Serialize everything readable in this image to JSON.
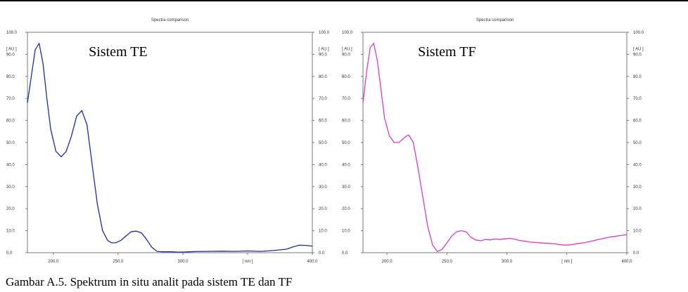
{
  "caption": "Gambar A.5. Spektrum in situ analit pada sistem TE dan TF",
  "chart_data": [
    {
      "type": "line",
      "title": "Spectra comparison",
      "annotation": "Sistem TE",
      "ylabel": "[ AU ]",
      "xlabel": "[ nm ]",
      "xlim": [
        180,
        400
      ],
      "ylim": [
        0,
        100
      ],
      "xticks": [
        "200.0",
        "250.0",
        "300.0",
        "[ nm ]",
        "400.0"
      ],
      "yticks": [
        "0.0",
        "10.0",
        "20.0",
        "30.0",
        "40.0",
        "50.0",
        "60.0",
        "70.0",
        "80.0",
        "90.0",
        "100.0"
      ],
      "color": "#1f2aa8",
      "series": [
        {
          "x": [
            180,
            183,
            186,
            189,
            192,
            195,
            198,
            202,
            206,
            210,
            214,
            218,
            222,
            226,
            230,
            234,
            238,
            242,
            245,
            248,
            252,
            256,
            260,
            264,
            268,
            272,
            276,
            280,
            284,
            288,
            292,
            296,
            300,
            305,
            310,
            320,
            330,
            340,
            350,
            360,
            370,
            380,
            385,
            390,
            395,
            400
          ],
          "y": [
            68,
            80,
            92,
            95,
            86,
            70,
            56,
            46,
            43.5,
            46,
            53,
            62,
            64.5,
            58,
            40,
            22,
            10,
            5.5,
            4.5,
            4.5,
            5.5,
            7.5,
            9.5,
            9.8,
            9,
            6,
            2.5,
            0.6,
            0.4,
            0.4,
            0.4,
            0.3,
            0.3,
            0.4,
            0.5,
            0.6,
            0.7,
            0.6,
            0.8,
            0.6,
            1.0,
            1.6,
            2.6,
            3.4,
            3.3,
            3.0
          ]
        }
      ]
    },
    {
      "type": "line",
      "title": "Spectra comparison",
      "annotation": "Sistem TF",
      "ylabel": "[ AU ]",
      "xlabel": "[ nm ]",
      "xlim": [
        180,
        400
      ],
      "ylim": [
        0,
        100
      ],
      "xticks": [
        "200.0",
        "250.0",
        "300.0",
        "[ nm ]",
        "400.0"
      ],
      "yticks": [
        "0.0",
        "10.0",
        "20.0",
        "30.0",
        "40.0",
        "50.0",
        "60.0",
        "70.0",
        "80.0",
        "90.0",
        "100.0"
      ],
      "color": "#d63ad0",
      "series": [
        {
          "x": [
            180,
            183,
            186,
            189,
            192,
            195,
            198,
            202,
            206,
            210,
            214,
            218,
            222,
            226,
            230,
            234,
            238,
            242,
            246,
            250,
            254,
            258,
            262,
            266,
            270,
            274,
            278,
            282,
            286,
            290,
            294,
            298,
            302,
            306,
            310,
            315,
            320,
            325,
            330,
            335,
            340,
            345,
            350,
            355,
            360,
            365,
            370,
            375,
            380,
            385,
            390,
            395,
            400
          ],
          "y": [
            68,
            82,
            93,
            95,
            87,
            74,
            61,
            53,
            50,
            50,
            52,
            53.5,
            50,
            38,
            25,
            12,
            3.5,
            0.5,
            1.5,
            4.5,
            7.5,
            9.5,
            10,
            9.5,
            7,
            5.8,
            5.4,
            6,
            5.8,
            6.2,
            6,
            6.3,
            6.5,
            6.2,
            5.6,
            5.2,
            4.8,
            4.6,
            4.4,
            4.2,
            4.0,
            3.6,
            3.4,
            3.8,
            4.2,
            4.6,
            5.2,
            5.8,
            6.4,
            7.0,
            7.4,
            7.8,
            8.2
          ]
        }
      ]
    }
  ]
}
